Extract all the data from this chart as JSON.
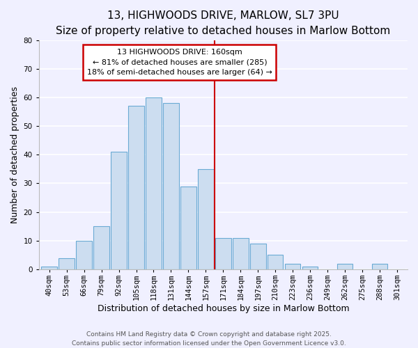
{
  "title": "13, HIGHWOODS DRIVE, MARLOW, SL7 3PU",
  "subtitle": "Size of property relative to detached houses in Marlow Bottom",
  "xlabel": "Distribution of detached houses by size in Marlow Bottom",
  "ylabel": "Number of detached properties",
  "bar_labels": [
    "40sqm",
    "53sqm",
    "66sqm",
    "79sqm",
    "92sqm",
    "105sqm",
    "118sqm",
    "131sqm",
    "144sqm",
    "157sqm",
    "171sqm",
    "184sqm",
    "197sqm",
    "210sqm",
    "223sqm",
    "236sqm",
    "249sqm",
    "262sqm",
    "275sqm",
    "288sqm",
    "301sqm"
  ],
  "bar_values": [
    1,
    4,
    10,
    15,
    41,
    57,
    60,
    58,
    29,
    35,
    11,
    11,
    9,
    5,
    2,
    1,
    0,
    2,
    0,
    2,
    0
  ],
  "bar_color": "#ccddf0",
  "bar_edge_color": "#6aaad4",
  "ylim": [
    0,
    80
  ],
  "yticks": [
    0,
    10,
    20,
    30,
    40,
    50,
    60,
    70,
    80
  ],
  "vline_x": 9.5,
  "vline_color": "#cc0000",
  "annotation_title": "13 HIGHWOODS DRIVE: 160sqm",
  "annotation_line1": "← 81% of detached houses are smaller (285)",
  "annotation_line2": "18% of semi-detached houses are larger (64) →",
  "annotation_box_color": "#ffffff",
  "annotation_box_edge": "#cc0000",
  "footer1": "Contains HM Land Registry data © Crown copyright and database right 2025.",
  "footer2": "Contains public sector information licensed under the Open Government Licence v3.0.",
  "background_color": "#f0f0ff",
  "grid_color": "#ffffff",
  "title_fontsize": 11,
  "subtitle_fontsize": 9,
  "axis_label_fontsize": 9,
  "tick_fontsize": 7.5,
  "annotation_fontsize": 8,
  "footer_fontsize": 6.5
}
